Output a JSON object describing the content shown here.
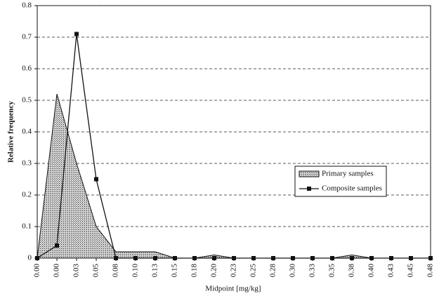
{
  "chart_data": {
    "type": "line",
    "y_label": "Relative frequency",
    "x_label": "Midpoint [mg/kg]",
    "categories": [
      "0.00",
      "0.00",
      "0.03",
      "0.05",
      "0.08",
      "0.10",
      "0.13",
      "0.15",
      "0.18",
      "0.20",
      "0.23",
      "0.25",
      "0.28",
      "0.30",
      "0.33",
      "0.35",
      "0.38",
      "0.40",
      "0.43",
      "0.45",
      "0.48"
    ],
    "series": [
      {
        "name": "Primary samples",
        "style": "area",
        "color": "#555555",
        "values": [
          0,
          0.52,
          0.3,
          0.1,
          0.02,
          0.02,
          0.02,
          0,
          0,
          0.01,
          0,
          0,
          0,
          0,
          0,
          0,
          0.01,
          0,
          0,
          0,
          0
        ]
      },
      {
        "name": "Composite samples",
        "style": "line",
        "color": "#111111",
        "values": [
          0,
          0.04,
          0.71,
          0.25,
          0,
          0,
          0,
          0,
          0,
          0,
          0,
          0,
          0,
          0,
          0,
          0,
          0,
          0,
          0,
          0,
          0
        ]
      }
    ],
    "ylim": [
      0,
      0.8
    ],
    "yticks": [
      0,
      0.1,
      0.2,
      0.3,
      0.4,
      0.5,
      0.6,
      0.7,
      0.8
    ],
    "grid": true,
    "legend": "right"
  }
}
